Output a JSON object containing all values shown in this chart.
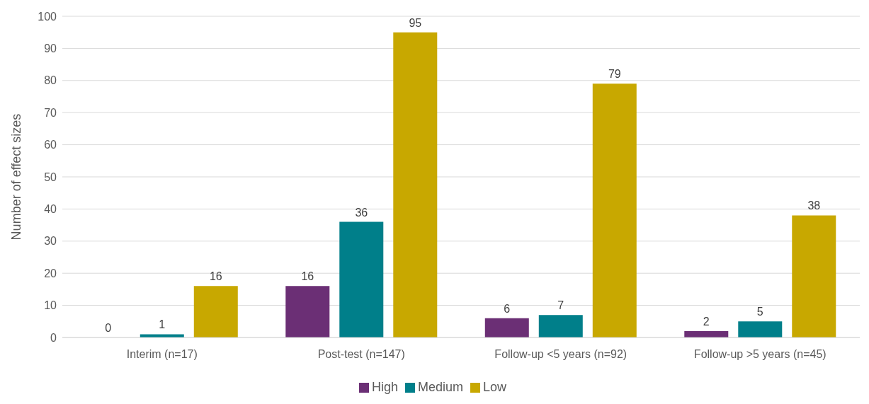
{
  "chart_data": {
    "type": "bar",
    "ylabel": "Number of effect sizes",
    "categories": [
      "Interim (n=17)",
      "Post-test (n=147)",
      "Follow-up <5 years (n=92)",
      "Follow-up >5 years (n=45)"
    ],
    "series": [
      {
        "name": "High",
        "color": "#6b2f75",
        "values": [
          0,
          16,
          6,
          2
        ]
      },
      {
        "name": "Medium",
        "color": "#007f8a",
        "values": [
          1,
          36,
          7,
          5
        ]
      },
      {
        "name": "Low",
        "color": "#c8a800",
        "values": [
          16,
          95,
          79,
          38
        ]
      }
    ],
    "ylim": [
      0,
      100
    ],
    "yticks": [
      0,
      10,
      20,
      30,
      40,
      50,
      60,
      70,
      80,
      90,
      100
    ],
    "grid": "y",
    "legend": "bottom",
    "data_labels": true
  }
}
